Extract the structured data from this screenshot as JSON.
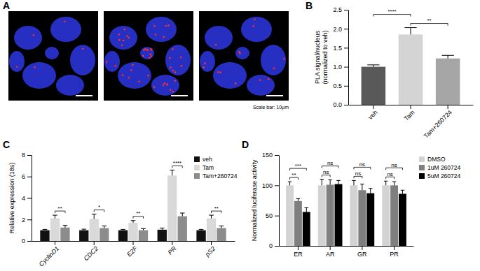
{
  "image_panel": {
    "label": "A",
    "caption": "Scale bar: 10µm"
  },
  "chart_data": [
    {
      "type": "bar",
      "title": "B",
      "categories": [
        "veh",
        "Tam",
        "Tam+260724"
      ],
      "values": [
        1.0,
        1.85,
        1.22
      ],
      "errors": [
        0.05,
        0.18,
        0.08
      ],
      "colors": [
        "#595959",
        "#d4d4d4",
        "#a6a6a6"
      ],
      "y_label": [
        "PLA signal/nucleus",
        "(normalized to veh)"
      ],
      "ylim": [
        0,
        2.5
      ],
      "yticks": [
        {
          "value": 0,
          "label": "0.0"
        },
        {
          "value": 0.5,
          "label": "0.5"
        },
        {
          "value": 1,
          "label": "1.0"
        },
        {
          "value": 1.5,
          "label": "1.5"
        },
        {
          "value": 2,
          "label": "2.0"
        },
        {
          "value": 2.5,
          "label": "2.5"
        }
      ],
      "annotations": [
        {
          "from": 1,
          "to": 2,
          "label": "**"
        },
        {
          "from": 0,
          "to": 1,
          "label": "****"
        }
      ]
    },
    {
      "type": "bar",
      "title": "C",
      "categories": [
        "CyclinD1",
        "CDC2",
        "E2F",
        "PR",
        "pS2"
      ],
      "series": [
        {
          "name": "veh",
          "color": "#111111",
          "values": [
            1.0,
            1.0,
            1.0,
            1.05,
            1.0
          ],
          "errors": [
            0.08,
            0.1,
            0.08,
            0.15,
            0.08
          ]
        },
        {
          "name": "Tam",
          "color": "#d9d9d9",
          "values": [
            2.1,
            2.05,
            1.7,
            6.1,
            2.1
          ],
          "errors": [
            0.3,
            0.45,
            0.2,
            0.5,
            0.3
          ]
        },
        {
          "name": "Tam+260724",
          "color": "#8c8c8c",
          "values": [
            1.25,
            1.2,
            1.0,
            2.3,
            1.2
          ],
          "errors": [
            0.2,
            0.2,
            0.15,
            0.3,
            0.2
          ]
        }
      ],
      "y_label": "Relative expression (18s)",
      "ylim": [
        0,
        8
      ],
      "yticks": [
        0,
        2,
        4,
        6,
        8
      ],
      "legend": "top-right",
      "annotations": [
        {
          "category": 0,
          "from": 1,
          "to": 2,
          "label": "**"
        },
        {
          "category": 1,
          "from": 1,
          "to": 2,
          "label": "*"
        },
        {
          "category": 2,
          "from": 1,
          "to": 2,
          "label": "**"
        },
        {
          "category": 3,
          "from": 1,
          "to": 2,
          "label": "****"
        },
        {
          "category": 4,
          "from": 1,
          "to": 2,
          "label": "**"
        }
      ]
    },
    {
      "type": "bar",
      "title": "D",
      "categories": [
        "ER",
        "AR",
        "GR",
        "PR"
      ],
      "series": [
        {
          "name": "DMSO",
          "color": "#d3d3d3",
          "values": [
            100,
            100,
            100,
            100
          ],
          "errors": [
            6,
            10,
            8,
            7
          ]
        },
        {
          "name": "1uM 260724",
          "color": "#7f7f7f",
          "values": [
            74,
            101,
            92,
            100
          ],
          "errors": [
            4,
            8,
            10,
            6
          ]
        },
        {
          "name": "5uM 260724",
          "color": "#000000",
          "values": [
            56,
            102,
            87,
            86
          ],
          "errors": [
            7,
            6,
            8,
            6
          ]
        }
      ],
      "y_label": "Normalized luciferase activity",
      "ylim": [
        0,
        150
      ],
      "yticks": [
        0,
        50,
        100,
        150
      ],
      "legend": "right",
      "annotations": [
        {
          "category": 0,
          "from": 0,
          "to": 1,
          "label": "**"
        },
        {
          "category": 0,
          "from": 0,
          "to": 2,
          "label": "***"
        },
        {
          "category": 1,
          "from": 0,
          "to": 1,
          "label": "ns"
        },
        {
          "category": 1,
          "from": 0,
          "to": 2,
          "label": "ns"
        },
        {
          "category": 2,
          "from": 0,
          "to": 1,
          "label": "ns"
        },
        {
          "category": 2,
          "from": 0,
          "to": 2,
          "label": "ns"
        },
        {
          "category": 3,
          "from": 0,
          "to": 1,
          "label": "ns"
        },
        {
          "category": 3,
          "from": 0,
          "to": 2,
          "label": "ns"
        }
      ]
    }
  ]
}
